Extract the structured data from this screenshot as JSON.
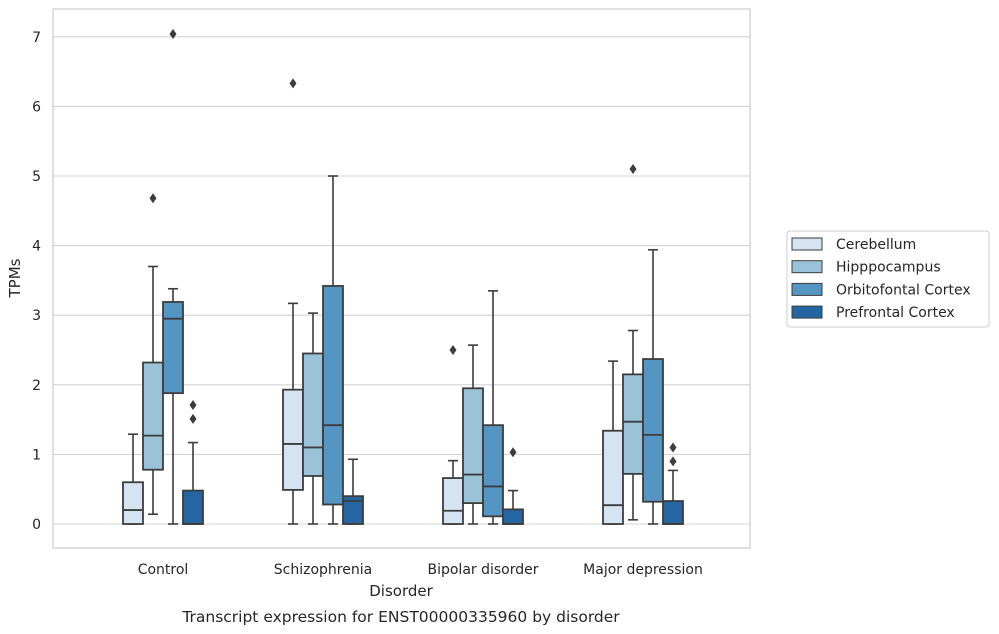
{
  "chart_data": {
    "type": "boxplot",
    "title": "",
    "caption": "Transcript expression for ENST00000335960 by disorder",
    "xlabel": "Disorder",
    "ylabel": "TPMs",
    "ylim": [
      -0.33,
      7.4
    ],
    "yticks": [
      0,
      1,
      2,
      3,
      4,
      5,
      6,
      7
    ],
    "grid": "horizontal",
    "legend_position": "right",
    "categories": [
      "Control",
      "Schizophrenia",
      "Bipolar disorder",
      "Major depression"
    ],
    "series": [
      {
        "name": "Cerebellum",
        "color": "#d6e4f1",
        "boxes": [
          {
            "whisker_low": 0.0,
            "q1": 0.0,
            "median": 0.2,
            "q3": 0.6,
            "whisker_high": 1.29,
            "outliers": []
          },
          {
            "whisker_low": 0.0,
            "q1": 0.49,
            "median": 1.15,
            "q3": 1.93,
            "whisker_high": 3.17,
            "outliers": [
              6.33
            ]
          },
          {
            "whisker_low": 0.0,
            "q1": 0.0,
            "median": 0.19,
            "q3": 0.66,
            "whisker_high": 0.91,
            "outliers": [
              2.5
            ]
          },
          {
            "whisker_low": 0.0,
            "q1": 0.0,
            "median": 0.27,
            "q3": 1.34,
            "whisker_high": 2.34,
            "outliers": []
          }
        ]
      },
      {
        "name": "Hipppocampus",
        "color": "#9ac3da",
        "boxes": [
          {
            "whisker_low": 0.14,
            "q1": 0.78,
            "median": 1.27,
            "q3": 2.32,
            "whisker_high": 3.7,
            "outliers": [
              4.68
            ]
          },
          {
            "whisker_low": 0.0,
            "q1": 0.69,
            "median": 1.1,
            "q3": 2.45,
            "whisker_high": 3.03,
            "outliers": []
          },
          {
            "whisker_low": 0.0,
            "q1": 0.3,
            "median": 0.71,
            "q3": 1.95,
            "whisker_high": 2.57,
            "outliers": []
          },
          {
            "whisker_low": 0.06,
            "q1": 0.72,
            "median": 1.47,
            "q3": 2.15,
            "whisker_high": 2.78,
            "outliers": [
              5.1
            ]
          }
        ]
      },
      {
        "name": "Orbitofontal Cortex",
        "color": "#5495c4",
        "boxes": [
          {
            "whisker_low": 0.0,
            "q1": 1.88,
            "median": 2.95,
            "q3": 3.19,
            "whisker_high": 3.38,
            "outliers": [
              7.04
            ]
          },
          {
            "whisker_low": 0.0,
            "q1": 0.28,
            "median": 1.42,
            "q3": 3.42,
            "whisker_high": 5.0,
            "outliers": []
          },
          {
            "whisker_low": 0.0,
            "q1": 0.11,
            "median": 0.54,
            "q3": 1.42,
            "whisker_high": 3.35,
            "outliers": []
          },
          {
            "whisker_low": 0.0,
            "q1": 0.32,
            "median": 1.28,
            "q3": 2.37,
            "whisker_high": 3.94,
            "outliers": []
          }
        ]
      },
      {
        "name": "Prefrontal Cortex",
        "color": "#2466a3",
        "boxes": [
          {
            "whisker_low": 0.0,
            "q1": 0.0,
            "median": 0.0,
            "q3": 0.48,
            "whisker_high": 1.17,
            "outliers": [
              1.51,
              1.71
            ]
          },
          {
            "whisker_low": 0.0,
            "q1": 0.0,
            "median": 0.33,
            "q3": 0.4,
            "whisker_high": 0.93,
            "outliers": []
          },
          {
            "whisker_low": 0.0,
            "q1": 0.0,
            "median": 0.0,
            "q3": 0.21,
            "whisker_high": 0.48,
            "outliers": [
              1.03
            ]
          },
          {
            "whisker_low": 0.0,
            "q1": 0.0,
            "median": 0.0,
            "q3": 0.33,
            "whisker_high": 0.77,
            "outliers": [
              0.9,
              1.1
            ]
          }
        ]
      }
    ]
  }
}
